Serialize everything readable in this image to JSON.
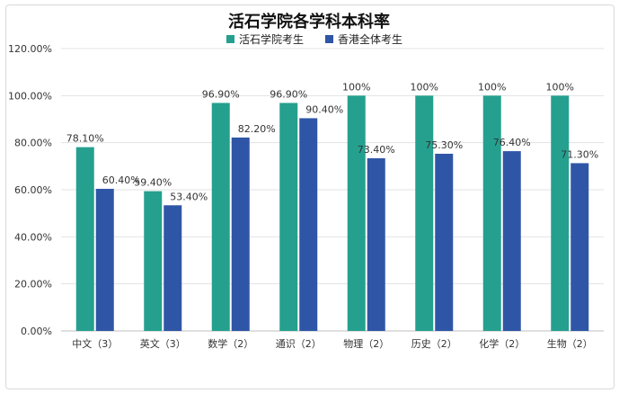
{
  "chart_data": {
    "type": "bar",
    "title": "活石学院各学科本科率",
    "categories": [
      "中文（3）",
      "英文（3）",
      "数学（2）",
      "通识（2）",
      "物理（2）",
      "历史（2）",
      "化学（2）",
      "生物（2）"
    ],
    "series": [
      {
        "name": "活石学院考生",
        "color": "#25a08f",
        "values": [
          78.1,
          59.4,
          96.9,
          96.9,
          100,
          100,
          100,
          100
        ],
        "labels": [
          "78.10%",
          "59.40%",
          "96.90%",
          "96.90%",
          "100%",
          "100%",
          "100%",
          "100%"
        ]
      },
      {
        "name": "香港全体考生",
        "color": "#2f56a6",
        "values": [
          60.4,
          53.4,
          82.2,
          90.4,
          73.4,
          75.3,
          76.4,
          71.3
        ],
        "labels": [
          "60.40%",
          "53.40%",
          "82.20%",
          "90.40%",
          "73.40%",
          "75.30%",
          "76.40%",
          "71.30%"
        ]
      }
    ],
    "ylim": [
      0,
      120
    ],
    "yticks": [
      0,
      20,
      40,
      60,
      80,
      100,
      120
    ],
    "ytick_labels": [
      "0.00%",
      "20.00%",
      "40.00%",
      "60.00%",
      "80.00%",
      "100.00%",
      "120.00%"
    ],
    "grid": true,
    "legend_position": "top-center"
  }
}
